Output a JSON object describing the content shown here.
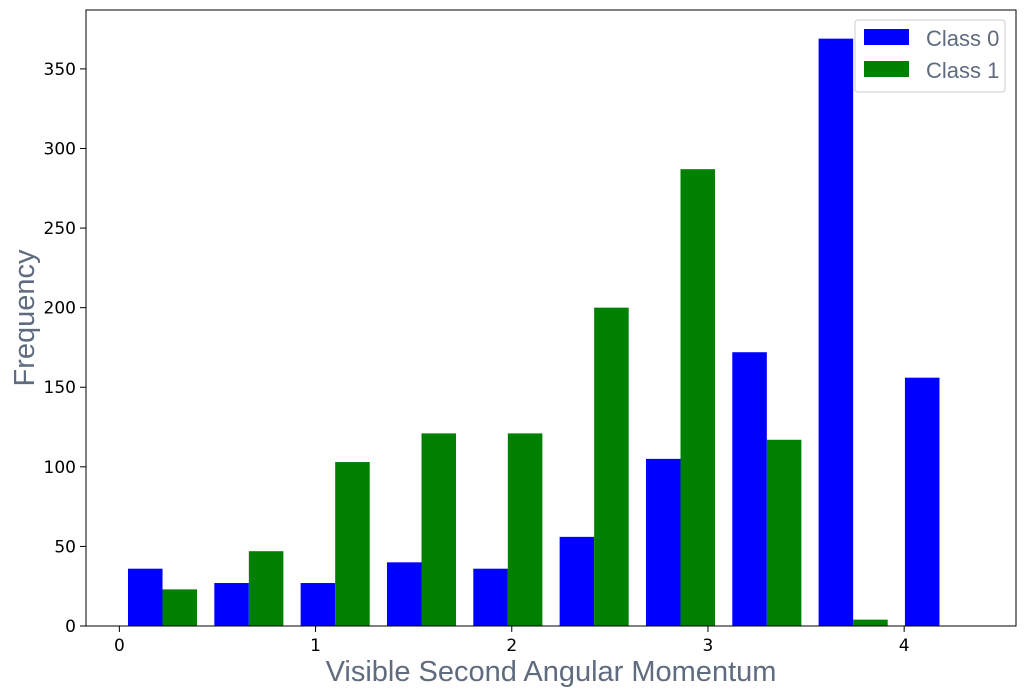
{
  "chart_data": {
    "type": "bar",
    "title": "",
    "xlabel": "Visible Second Angular Momentum",
    "ylabel": "Frequency",
    "xlim": [
      -0.17,
      4.57
    ],
    "ylim": [
      0,
      387
    ],
    "xticks": [
      0,
      1,
      2,
      3,
      4
    ],
    "yticks": [
      0,
      50,
      100,
      150,
      200,
      250,
      300,
      350
    ],
    "bin_centers": [
      0.22,
      0.66,
      1.1,
      1.54,
      1.98,
      2.42,
      2.86,
      3.3,
      3.74,
      4.18
    ],
    "series": [
      {
        "name": "Class 0",
        "color": "#0000ff",
        "values": [
          36,
          27,
          27,
          40,
          36,
          56,
          105,
          172,
          369,
          156
        ]
      },
      {
        "name": "Class 1",
        "color": "#008000",
        "values": [
          23,
          47,
          103,
          121,
          121,
          200,
          287,
          117,
          4,
          0
        ]
      }
    ],
    "grid": false,
    "legend_position": "top-right"
  }
}
